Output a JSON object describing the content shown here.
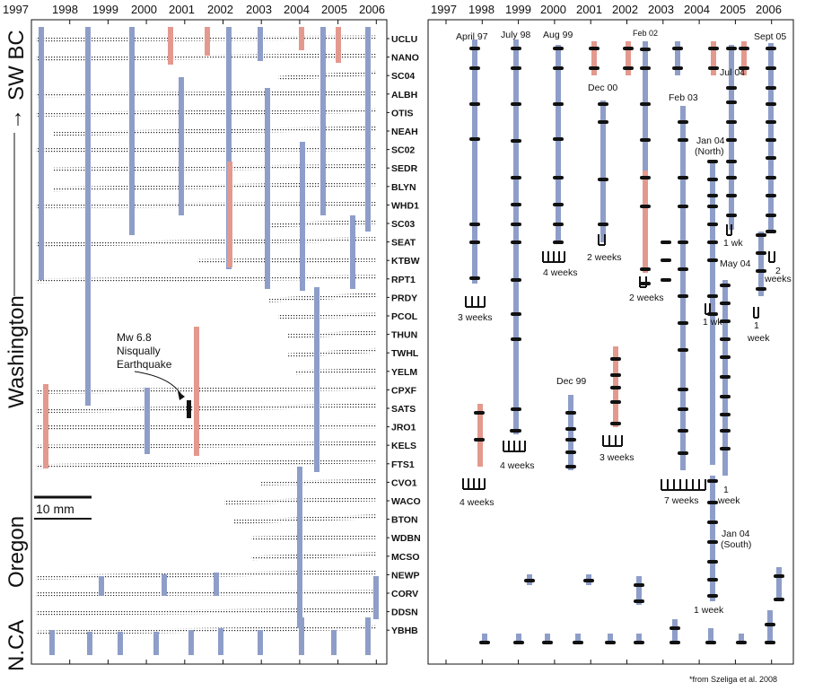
{
  "years": [
    "1997",
    "1998",
    "1999",
    "2000",
    "2001",
    "2002",
    "2003",
    "2004",
    "2005",
    "2006"
  ],
  "stations": [
    "UCLU",
    "NANO",
    "SC04",
    "ALBH",
    "OTIS",
    "NEAH",
    "SC02",
    "SEDR",
    "BLYN",
    "WHD1",
    "SC03",
    "SEAT",
    "KTBW",
    "RPT1",
    "PRDY",
    "PCOL",
    "THUN",
    "TWHL",
    "YELM",
    "CPXF",
    "SATS",
    "JRO1",
    "KELS",
    "FTS1",
    "CVO1",
    "WACO",
    "BTON",
    "WDBN",
    "MCSO",
    "NEWP",
    "CORV",
    "DDSN",
    "YBHB"
  ],
  "regions": {
    "swbc": "SW BC",
    "washington": "Washington",
    "oregon": "Oregon",
    "nca": "N.CA"
  },
  "arrow_glyph": "→",
  "scale_bar": "10 mm",
  "quake_annotation": [
    "Mw 6.8",
    "Nisqually",
    "Earthquake"
  ],
  "right_labels": {
    "april97": "April 97",
    "july98": "July 98",
    "aug99": "Aug 99",
    "feb02": "Feb 02",
    "sept05": "Sept 05",
    "jul04": "Jul 04",
    "dec00": "Dec 00",
    "feb03": "Feb 03",
    "jan04n": "Jan 04",
    "north": "(North)",
    "may04": "May 04",
    "dec99": "Dec 99",
    "jan04s": "Jan 04",
    "south": "(South)"
  },
  "durations": {
    "d_3w": "3 weeks",
    "d_4w_99": "4 weeks",
    "d_4w_00": "4 weeks",
    "d_2w_01": "2 weeks",
    "d_2w_02": "2 weeks",
    "d_4w_97": "4 weeks",
    "d_3w_02": "3 weeks",
    "d_7w": "7 weeks",
    "d_1wk_a": "1 wk",
    "d_1wk_b": "1 wk",
    "d_1week_a": "1",
    "d_1week_a2": "week",
    "d_2wk": "2",
    "d_2wk2": "weeks",
    "d_1w_b": "1",
    "d_1w_b2": "week",
    "d_1week_c": "1 week"
  },
  "footnote": "*from Szeliga et al. 2008",
  "colors": {
    "blue": "#8e9ec9",
    "red": "#e4998e",
    "frame": "#111111"
  }
}
